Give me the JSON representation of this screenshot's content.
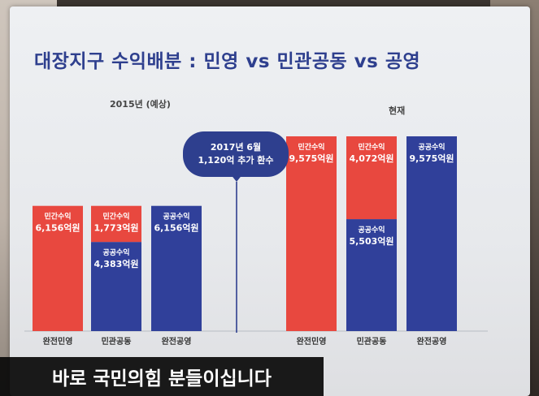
{
  "title": "대장지구 수익배분 : 민영 vs 민관공동 vs 공영",
  "colors": {
    "private": "#e8483f",
    "public": "#30409a",
    "accent": "#2e3f8e"
  },
  "callout": {
    "line1": "2017년 6월",
    "line2": "1,120억 추가 환수"
  },
  "subtitle": "바로 국민의힘 분들이십니다",
  "chart_data": [
    {
      "type": "bar",
      "stacked": true,
      "title": "2015년 (예상)",
      "categories": [
        "완전민영",
        "민관공동",
        "완전공영"
      ],
      "series": [
        {
          "name": "민간수익",
          "values": [
            6156,
            1773,
            0
          ]
        },
        {
          "name": "공공수익",
          "values": [
            0,
            4383,
            6156
          ]
        }
      ],
      "value_label_suffix": "억원",
      "label_text": {
        "private": "민간수익",
        "public": "공공수익"
      }
    },
    {
      "type": "bar",
      "stacked": true,
      "title": "현재",
      "categories": [
        "완전민영",
        "민관공동",
        "완전공영"
      ],
      "series": [
        {
          "name": "민간수익",
          "values": [
            9575,
            4072,
            0
          ]
        },
        {
          "name": "공공수익",
          "values": [
            0,
            5503,
            9575
          ]
        }
      ],
      "value_label_suffix": "억원",
      "label_text": {
        "private": "민간수익",
        "public": "공공수익"
      }
    }
  ]
}
